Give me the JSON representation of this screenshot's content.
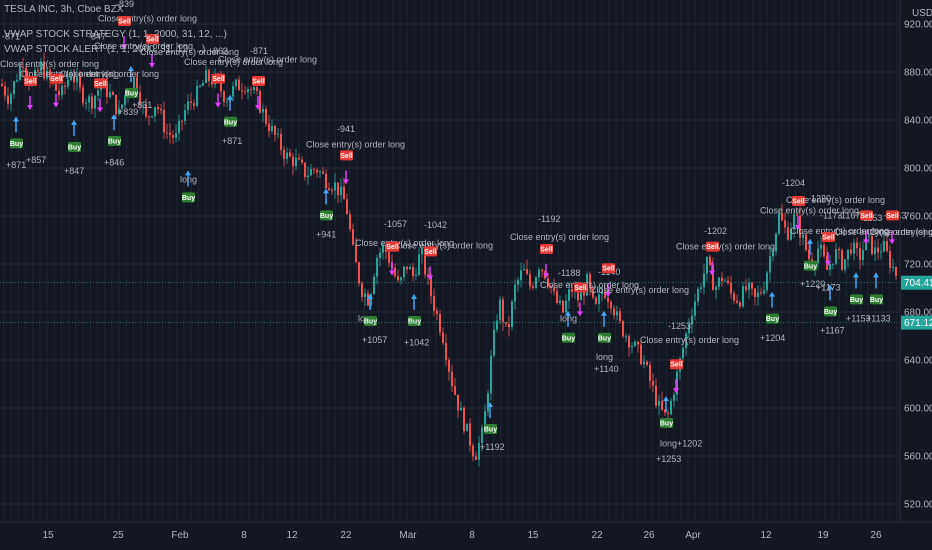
{
  "header": {
    "symbol_line": "TESLA INC, 3h, Cboe BZX",
    "strategy_line": "VWAP STOCK STRATEGY (1, 1, 2000, 31, 12, ...)",
    "alert_line": "VWAP STOCK ALERT (1, 1, 2000, 31, 12, ...)",
    "currency": "USD"
  },
  "colors": {
    "background": "#131722",
    "up": "#26a69a",
    "down": "#ef5350",
    "buy": "#2e7d32",
    "sell": "#e53935",
    "marker": "#e040fb",
    "arrow": "#42a5f5",
    "price_tag": "#26a69a"
  },
  "chart_data": {
    "type": "candlestick",
    "y_ticks": [
      "920.00",
      "880.00",
      "840.00",
      "800.00",
      "760.00",
      "720.00",
      "680.00",
      "640.00",
      "600.00",
      "560.00",
      "520.00"
    ],
    "ylim": [
      505,
      940
    ],
    "x_ticks": [
      "15",
      "25",
      "Feb",
      "8",
      "12",
      "22",
      "Mar",
      "8",
      "15",
      "22",
      "26",
      "Apr",
      "12",
      "19",
      "26"
    ],
    "price_tags": [
      {
        "value": 704.41,
        "label": "704.41"
      },
      {
        "value": 671.12,
        "label": "671.12"
      }
    ],
    "path": [
      [
        0,
        870
      ],
      [
        8,
        858
      ],
      [
        15,
        875
      ],
      [
        22,
        890
      ],
      [
        30,
        868
      ],
      [
        40,
        885
      ],
      [
        50,
        870
      ],
      [
        60,
        860
      ],
      [
        70,
        880
      ],
      [
        80,
        862
      ],
      [
        90,
        855
      ],
      [
        100,
        870
      ],
      [
        110,
        860
      ],
      [
        118,
        845
      ],
      [
        126,
        866
      ],
      [
        134,
        875
      ],
      [
        145,
        840
      ],
      [
        155,
        855
      ],
      [
        165,
        830
      ],
      [
        175,
        825
      ],
      [
        185,
        850
      ],
      [
        195,
        860
      ],
      [
        205,
        875
      ],
      [
        215,
        872
      ],
      [
        225,
        858
      ],
      [
        235,
        868
      ],
      [
        245,
        870
      ],
      [
        255,
        860
      ],
      [
        265,
        840
      ],
      [
        275,
        825
      ],
      [
        285,
        810
      ],
      [
        295,
        805
      ],
      [
        305,
        795
      ],
      [
        315,
        800
      ],
      [
        325,
        790
      ],
      [
        335,
        785
      ],
      [
        345,
        770
      ],
      [
        352,
        730
      ],
      [
        360,
        700
      ],
      [
        368,
        690
      ],
      [
        375,
        725
      ],
      [
        383,
        735
      ],
      [
        390,
        720
      ],
      [
        398,
        700
      ],
      [
        405,
        720
      ],
      [
        412,
        710
      ],
      [
        420,
        730
      ],
      [
        428,
        700
      ],
      [
        435,
        680
      ],
      [
        442,
        660
      ],
      [
        450,
        625
      ],
      [
        458,
        600
      ],
      [
        466,
        580
      ],
      [
        474,
        560
      ],
      [
        482,
        580
      ],
      [
        490,
        640
      ],
      [
        498,
        690
      ],
      [
        506,
        660
      ],
      [
        514,
        700
      ],
      [
        522,
        715
      ],
      [
        530,
        700
      ],
      [
        538,
        720
      ],
      [
        546,
        710
      ],
      [
        554,
        690
      ],
      [
        562,
        680
      ],
      [
        570,
        700
      ],
      [
        578,
        690
      ],
      [
        586,
        705
      ],
      [
        594,
        680
      ],
      [
        602,
        700
      ],
      [
        610,
        690
      ],
      [
        618,
        670
      ],
      [
        626,
        660
      ],
      [
        634,
        650
      ],
      [
        642,
        640
      ],
      [
        650,
        620
      ],
      [
        658,
        600
      ],
      [
        666,
        590
      ],
      [
        674,
        620
      ],
      [
        682,
        650
      ],
      [
        690,
        680
      ],
      [
        698,
        700
      ],
      [
        706,
        720
      ],
      [
        714,
        700
      ],
      [
        722,
        710
      ],
      [
        730,
        695
      ],
      [
        738,
        690
      ],
      [
        746,
        700
      ],
      [
        754,
        690
      ],
      [
        762,
        700
      ],
      [
        770,
        730
      ],
      [
        778,
        760
      ],
      [
        786,
        745
      ],
      [
        794,
        760
      ],
      [
        802,
        740
      ],
      [
        810,
        720
      ],
      [
        818,
        735
      ],
      [
        826,
        715
      ],
      [
        834,
        730
      ],
      [
        842,
        720
      ],
      [
        850,
        735
      ],
      [
        858,
        725
      ],
      [
        866,
        740
      ],
      [
        874,
        730
      ],
      [
        882,
        735
      ],
      [
        890,
        720
      ],
      [
        900,
        704
      ]
    ],
    "annotations": [
      {
        "x": 2,
        "y": 907,
        "text": "-871"
      },
      {
        "x": 0,
        "y": 884,
        "text": "Close entry(s) order long"
      },
      {
        "x": 20,
        "y": 876,
        "text": "Close entry(s) order long"
      },
      {
        "x": 60,
        "y": 876,
        "text": "Close entry(s) order long"
      },
      {
        "x": 88,
        "y": 907,
        "text": "-847"
      },
      {
        "x": 98,
        "y": 922,
        "text": "Close entry(s) order long"
      },
      {
        "x": 116,
        "y": 934,
        "text": "-839"
      },
      {
        "x": 96,
        "y": 952,
        "text": "Close entry(s) order long"
      },
      {
        "x": 94,
        "y": 899,
        "text": "Close entry(s) order long"
      },
      {
        "x": 140,
        "y": 894,
        "text": "Close entry(s) order long"
      },
      {
        "x": 210,
        "y": 895,
        "text": "-863"
      },
      {
        "x": 250,
        "y": 895,
        "text": "-871"
      },
      {
        "x": 184,
        "y": 886,
        "text": "Close entry(s) order long"
      },
      {
        "x": 218,
        "y": 888,
        "text": "Close entry(s) order long"
      },
      {
        "x": 337,
        "y": 830,
        "text": "-941"
      },
      {
        "x": 306,
        "y": 817,
        "text": "Close entry(s) order long"
      },
      {
        "x": 384,
        "y": 751,
        "text": "-1057"
      },
      {
        "x": 424,
        "y": 750,
        "text": "-1042"
      },
      {
        "x": 355,
        "y": 735,
        "text": "Close entry(s) order long"
      },
      {
        "x": 394,
        "y": 733,
        "text": "Close entry(s) order long"
      },
      {
        "x": 538,
        "y": 755,
        "text": "-1192"
      },
      {
        "x": 510,
        "y": 740,
        "text": "Close entry(s) order long"
      },
      {
        "x": 558,
        "y": 710,
        "text": "-1188"
      },
      {
        "x": 598,
        "y": 711,
        "text": "-1140"
      },
      {
        "x": 540,
        "y": 700,
        "text": "Close entry(s) order long"
      },
      {
        "x": 590,
        "y": 696,
        "text": "Close entry(s) order long"
      },
      {
        "x": 704,
        "y": 745,
        "text": "-1202"
      },
      {
        "x": 676,
        "y": 732,
        "text": "Close entry(s) order long"
      },
      {
        "x": 668,
        "y": 666,
        "text": "-1253"
      },
      {
        "x": 640,
        "y": 654,
        "text": "Close entry(s) order long"
      },
      {
        "x": 782,
        "y": 785,
        "text": "-1204"
      },
      {
        "x": 786,
        "y": 771,
        "text": "Close entry(s) order long"
      },
      {
        "x": 760,
        "y": 762,
        "text": "Close entry(s) order long"
      },
      {
        "x": 808,
        "y": 772,
        "text": "-1220"
      },
      {
        "x": 820,
        "y": 758,
        "text": "-1173"
      },
      {
        "x": 838,
        "y": 758,
        "text": "-1167"
      },
      {
        "x": 860,
        "y": 756,
        "text": "-1153"
      },
      {
        "x": 884,
        "y": 758,
        "text": "-1133"
      },
      {
        "x": 790,
        "y": 745,
        "text": "Close entry(s) order long"
      },
      {
        "x": 834,
        "y": 744,
        "text": "Close entry(s) order long"
      },
      {
        "x": 870,
        "y": 744,
        "text": "Close entry(s) order long"
      },
      {
        "x": 6,
        "y": 800,
        "text": "+871"
      },
      {
        "x": 26,
        "y": 804,
        "text": "+857"
      },
      {
        "x": 64,
        "y": 795,
        "text": "+847"
      },
      {
        "x": 104,
        "y": 802,
        "text": "+846"
      },
      {
        "x": 118,
        "y": 844,
        "text": "+839"
      },
      {
        "x": 132,
        "y": 850,
        "text": "+831"
      },
      {
        "x": 222,
        "y": 820,
        "text": "+871"
      },
      {
        "x": 180,
        "y": 788,
        "text": "long"
      },
      {
        "x": 316,
        "y": 742,
        "text": "+941"
      },
      {
        "x": 362,
        "y": 654,
        "text": "+1057"
      },
      {
        "x": 404,
        "y": 652,
        "text": "+1042"
      },
      {
        "x": 358,
        "y": 672,
        "text": "long"
      },
      {
        "x": 480,
        "y": 565,
        "text": "+1192"
      },
      {
        "x": 560,
        "y": 672,
        "text": "long"
      },
      {
        "x": 594,
        "y": 630,
        "text": "+1140"
      },
      {
        "x": 596,
        "y": 640,
        "text": "long"
      },
      {
        "x": 656,
        "y": 555,
        "text": "+1253"
      },
      {
        "x": 660,
        "y": 568,
        "text": "long+1202"
      },
      {
        "x": 760,
        "y": 656,
        "text": "+1204"
      },
      {
        "x": 800,
        "y": 701,
        "text": "+1220"
      },
      {
        "x": 820,
        "y": 662,
        "text": "+1167"
      },
      {
        "x": 816,
        "y": 698,
        "text": "+1173"
      },
      {
        "x": 846,
        "y": 672,
        "text": "+1153"
      },
      {
        "x": 866,
        "y": 672,
        "text": "+1133"
      }
    ],
    "buy_badges": [
      {
        "x": 10,
        "y": 818,
        "text": "Buy"
      },
      {
        "x": 68,
        "y": 815,
        "text": "Buy"
      },
      {
        "x": 108,
        "y": 820,
        "text": "Buy"
      },
      {
        "x": 125,
        "y": 860,
        "text": "Buy"
      },
      {
        "x": 224,
        "y": 836,
        "text": "Buy"
      },
      {
        "x": 182,
        "y": 773,
        "text": "Buy"
      },
      {
        "x": 320,
        "y": 758,
        "text": "Buy"
      },
      {
        "x": 364,
        "y": 670,
        "text": "Buy"
      },
      {
        "x": 408,
        "y": 670,
        "text": "Buy"
      },
      {
        "x": 484,
        "y": 580,
        "text": "Buy"
      },
      {
        "x": 562,
        "y": 656,
        "text": "Buy"
      },
      {
        "x": 598,
        "y": 656,
        "text": "Buy"
      },
      {
        "x": 660,
        "y": 585,
        "text": "Buy"
      },
      {
        "x": 766,
        "y": 672,
        "text": "Buy"
      },
      {
        "x": 804,
        "y": 716,
        "text": "Buy"
      },
      {
        "x": 824,
        "y": 678,
        "text": "Buy"
      },
      {
        "x": 850,
        "y": 688,
        "text": "Buy"
      },
      {
        "x": 870,
        "y": 688,
        "text": "Buy"
      }
    ],
    "sell_badges": [
      {
        "x": 24,
        "y": 870,
        "text": "Sell"
      },
      {
        "x": 50,
        "y": 872,
        "text": "Sell"
      },
      {
        "x": 94,
        "y": 868,
        "text": "Sell"
      },
      {
        "x": 118,
        "y": 920,
        "text": "Sell"
      },
      {
        "x": 146,
        "y": 905,
        "text": "Sell"
      },
      {
        "x": 212,
        "y": 872,
        "text": "Sell"
      },
      {
        "x": 252,
        "y": 870,
        "text": "Sell"
      },
      {
        "x": 340,
        "y": 808,
        "text": "Sell"
      },
      {
        "x": 386,
        "y": 732,
        "text": "Sell"
      },
      {
        "x": 424,
        "y": 728,
        "text": "Sell"
      },
      {
        "x": 540,
        "y": 730,
        "text": "Sell"
      },
      {
        "x": 574,
        "y": 698,
        "text": "Sell"
      },
      {
        "x": 602,
        "y": 714,
        "text": "Sell"
      },
      {
        "x": 706,
        "y": 732,
        "text": "Sell"
      },
      {
        "x": 670,
        "y": 634,
        "text": "Sell"
      },
      {
        "x": 792,
        "y": 770,
        "text": "Sell"
      },
      {
        "x": 822,
        "y": 740,
        "text": "Sell"
      },
      {
        "x": 860,
        "y": 758,
        "text": "Sell"
      },
      {
        "x": 886,
        "y": 758,
        "text": "Sell"
      }
    ]
  }
}
